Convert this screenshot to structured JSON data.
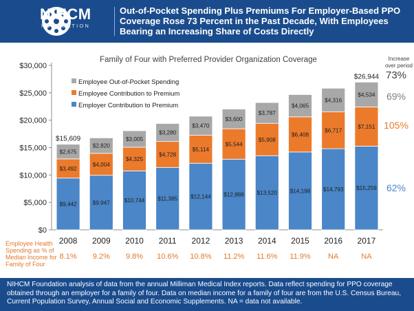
{
  "header": {
    "logo_text": "NIHCM",
    "logo_sub": "FOUNDATION",
    "title": "Out-of-Pocket Spending Plus Premiums For Employer-Based PPO Coverage Rose 73 Percent in the Past Decade, With Employees Bearing an Increasing Share of Costs Directly"
  },
  "footer": {
    "note": "NIHCM Foundation analysis of data from the annual Milliman Medical Index reports.  Data reflect spending for PPO coverage obtained through an employer for a family of four.  Data on median income for a family of four are from the U.S. Census Bureau, Current Population Survey, Annual Social and Economic Supplements.  NA = data not available."
  },
  "chart_data": {
    "type": "bar",
    "stacked": true,
    "title": "Family of Four with Preferred Provider Organization Coverage",
    "categories": [
      "2008",
      "2009",
      "2010",
      "2011",
      "2012",
      "2013",
      "2014",
      "2015",
      "2016",
      "2017"
    ],
    "ylim": [
      0,
      30000
    ],
    "yticks": [
      "$0",
      "$5,000",
      "$10,000",
      "$15,000",
      "$20,000",
      "$25,000",
      "$30,000"
    ],
    "grid": false,
    "legend_position": "top-left",
    "series": [
      {
        "name": "Employer Contribution to Premium",
        "color": "#4a86c8",
        "values": [
          9442,
          9947,
          10744,
          11385,
          12144,
          12886,
          13520,
          14198,
          14793,
          15259
        ],
        "labels": [
          "$9,442",
          "$9,947",
          "$10,744",
          "$11,385",
          "$12,144",
          "$12,886",
          "$13,520",
          "$14,198",
          "$14,793",
          "$15,259"
        ]
      },
      {
        "name": "Employee Contribution to Premium",
        "color": "#ec7a2b",
        "values": [
          3492,
          4004,
          4325,
          4728,
          5114,
          5544,
          5908,
          6408,
          6717,
          7151
        ],
        "labels": [
          "$3,492",
          "$4,004",
          "$4,325",
          "$4,728",
          "$5,114",
          "$5,544",
          "$5,908",
          "$6,408",
          "$6,717",
          "$7,151"
        ]
      },
      {
        "name": "Employee Out-of-Pocket Spending",
        "color": "#a8a8a8",
        "values": [
          2675,
          2820,
          3005,
          3280,
          3470,
          3600,
          3787,
          4065,
          4316,
          4534
        ],
        "labels": [
          "$2,675",
          "$2,820",
          "$3,005",
          "$3,280",
          "$3,470",
          "$3,600",
          "$3,787",
          "$4,065",
          "$4,316",
          "$4,534"
        ]
      }
    ],
    "totals": {
      "2008": "$15,609",
      "2017": "$26,944"
    },
    "increase_header": "Increase over period",
    "increases": [
      {
        "series": "Employee Out-of-Pocket Spending",
        "label": "69%",
        "color": "#7f7f7f"
      },
      {
        "series": "Employee Contribution to Premium",
        "label": "105%",
        "color": "#ec7a2b"
      },
      {
        "series": "Employer Contribution to Premium",
        "label": "62%",
        "color": "#4a86c8"
      }
    ],
    "total_increase": {
      "label": "73%",
      "color": "#404040"
    },
    "share_row": {
      "label": "Employee Health Spending as % of Median Income for Family of Four",
      "values": [
        "8.1%",
        "9.2%",
        "9.8%",
        "10.6%",
        "10.8%",
        "11.2%",
        "11.6%",
        "11.9%",
        "NA",
        "NA"
      ]
    }
  }
}
